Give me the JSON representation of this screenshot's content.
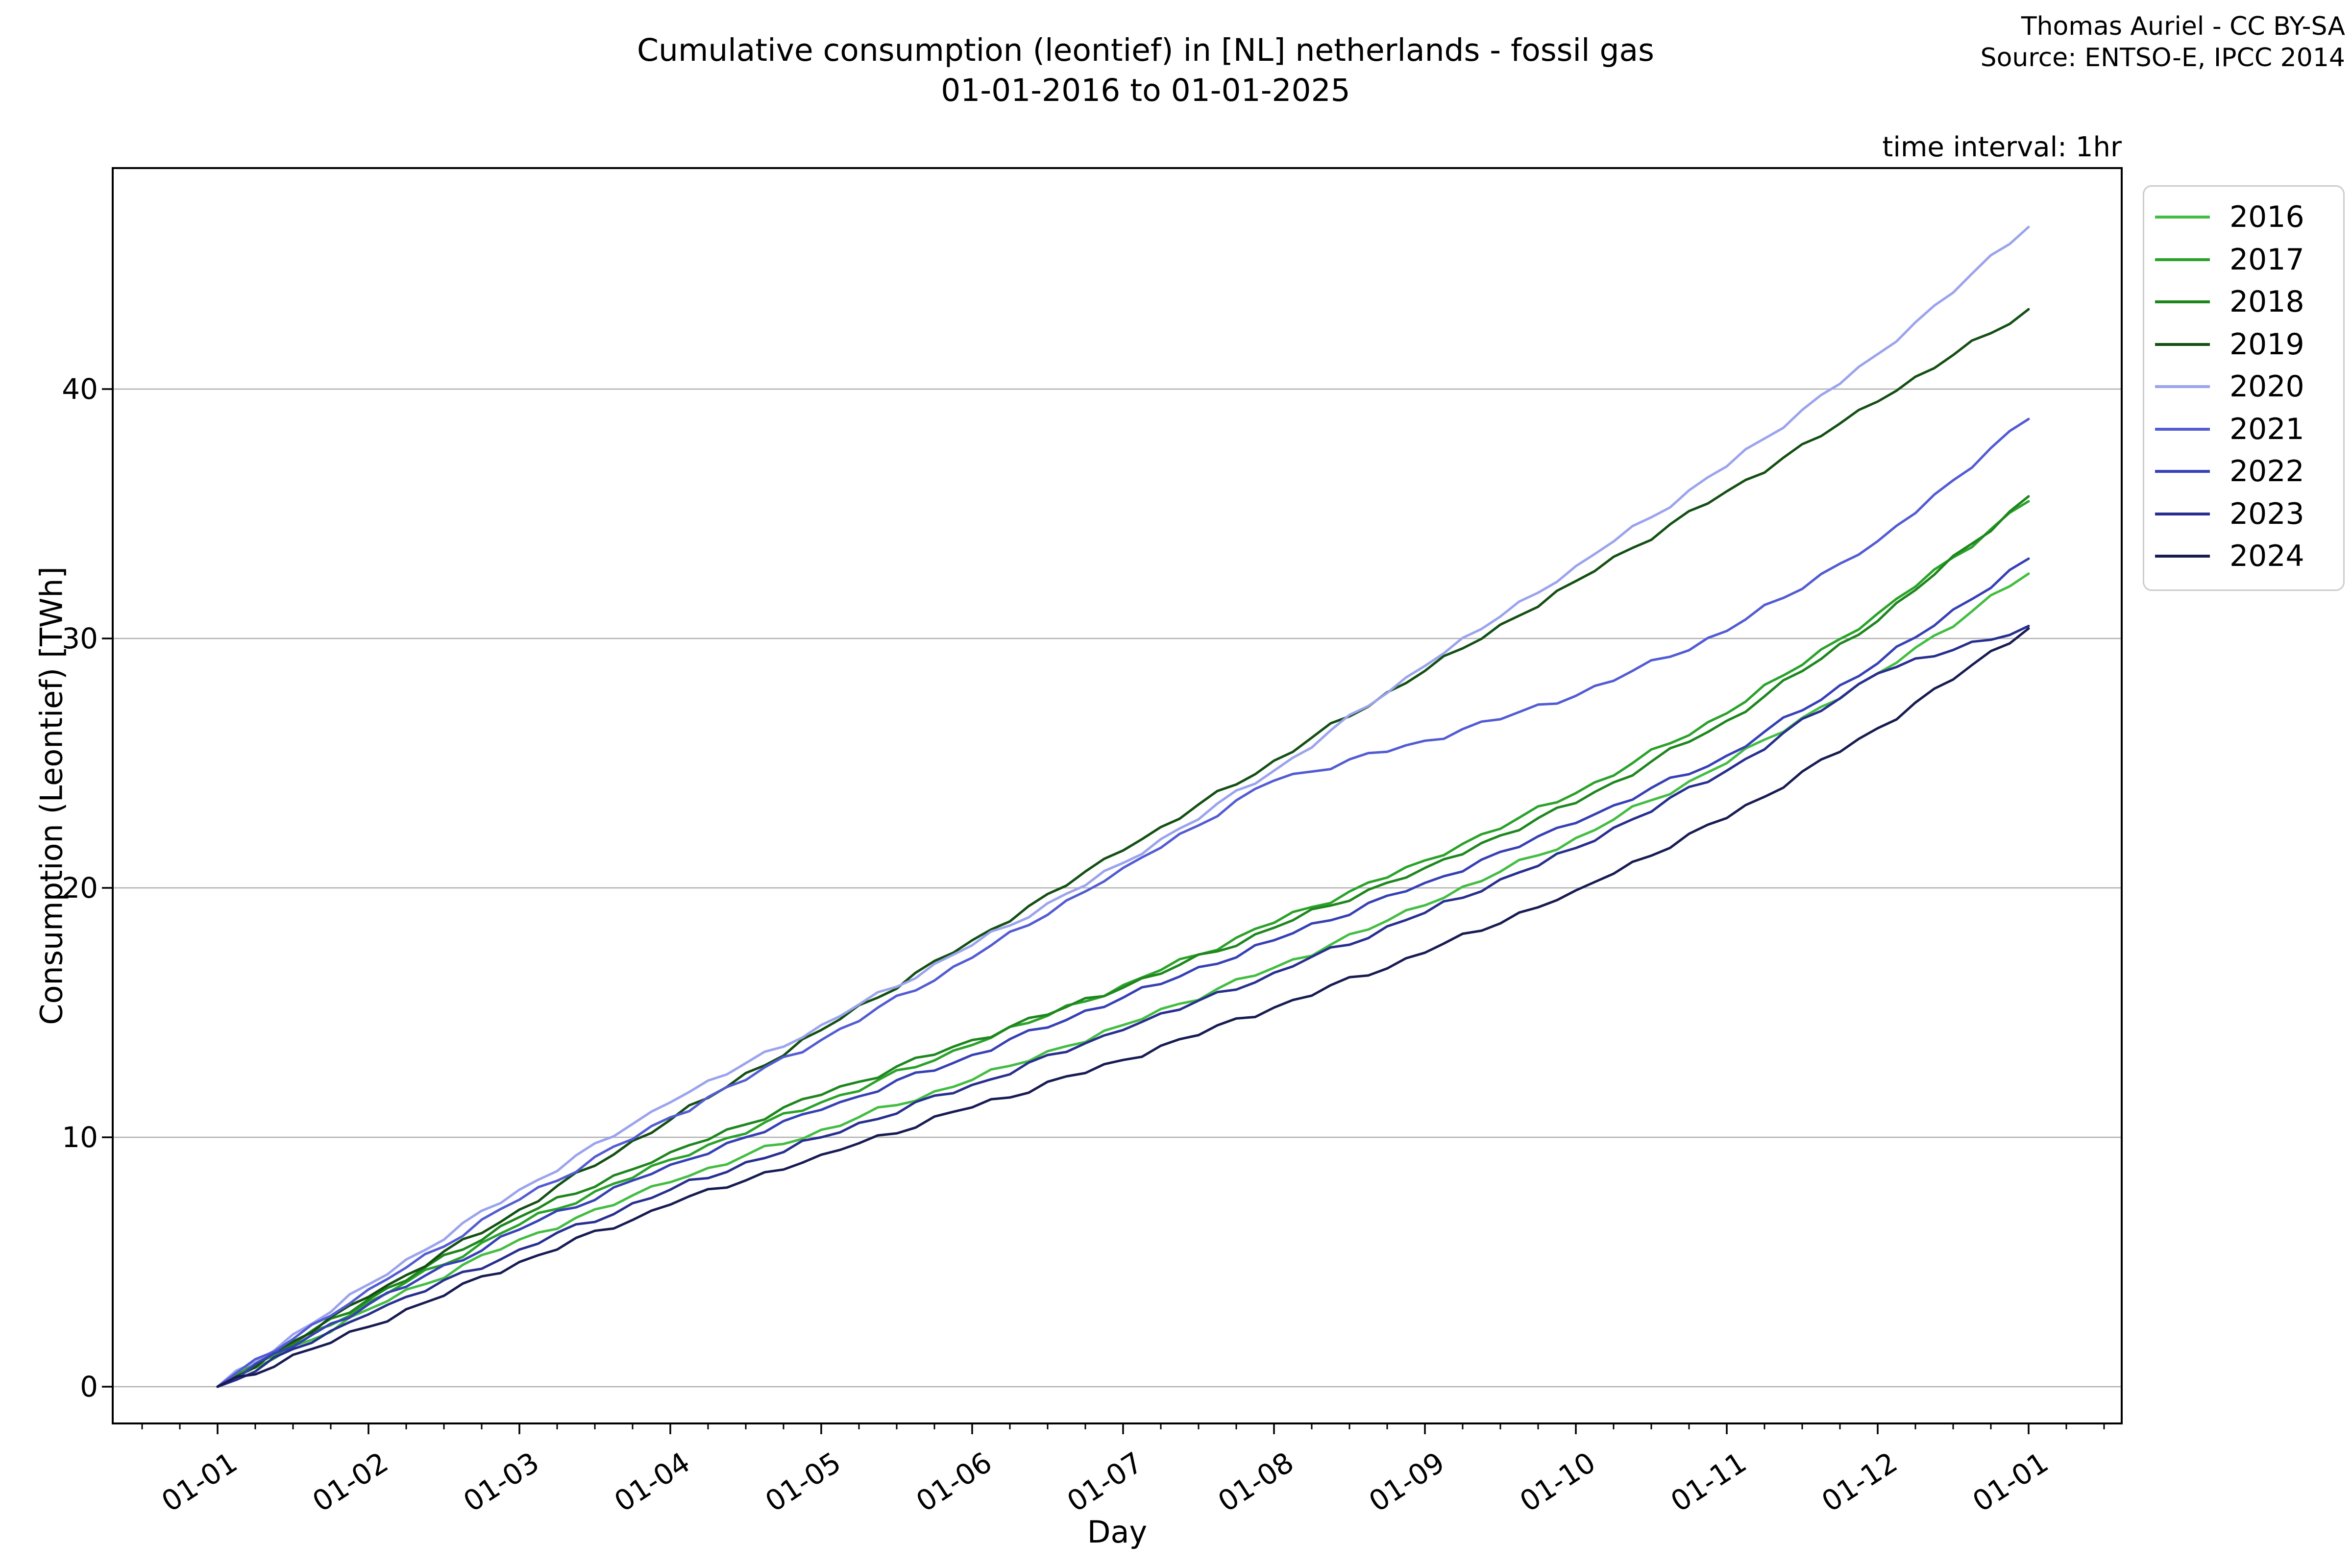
{
  "title": {
    "line1": "Cumulative consumption (leontief) in [NL] netherlands - fossil gas",
    "line2": "01-01-2016 to 01-01-2025"
  },
  "attribution": {
    "line1": "Thomas Auriel - CC BY-SA",
    "line2": "Source: ENTSO-E, IPCC 2014"
  },
  "annotations": {
    "time_interval": "time interval: 1hr"
  },
  "chart_data": {
    "type": "line",
    "title": "Cumulative consumption (leontief) in [NL] netherlands - fossil gas 01-01-2016 to 01-01-2025",
    "xlabel": "Day",
    "ylabel": "Consumption (Leontief) [TWh]",
    "x_tick_labels": [
      "01-01",
      "01-02",
      "01-03",
      "01-04",
      "01-05",
      "01-06",
      "01-07",
      "01-08",
      "01-09",
      "01-10",
      "01-11",
      "01-12",
      "01-01"
    ],
    "y_ticks": [
      0,
      10,
      20,
      30,
      40
    ],
    "ylim": [
      -1.5,
      48.9
    ],
    "grid": "horizontal",
    "grid_color": "#b0b0b0",
    "legend_position": "outside upper right",
    "x_months": [
      0,
      1,
      2,
      3,
      4,
      5,
      6,
      7,
      8,
      9,
      10,
      11,
      12
    ],
    "series": [
      {
        "name": "2016",
        "color": "#42bd42",
        "values": [
          0,
          3.1,
          5.9,
          8.2,
          10.3,
          12.3,
          14.5,
          16.8,
          19.3,
          22.0,
          25.0,
          28.6,
          32.6
        ]
      },
      {
        "name": "2017",
        "color": "#2aa22a",
        "values": [
          0,
          3.4,
          6.5,
          9.1,
          11.4,
          13.7,
          16.1,
          18.6,
          21.1,
          23.8,
          27.0,
          31.0,
          35.5
        ]
      },
      {
        "name": "2018",
        "color": "#1d861d",
        "values": [
          0,
          3.5,
          6.8,
          9.4,
          11.7,
          13.9,
          16.0,
          18.4,
          20.8,
          23.4,
          26.7,
          30.7,
          35.7
        ]
      },
      {
        "name": "2019",
        "color": "#134f13",
        "values": [
          0,
          3.6,
          7.1,
          10.7,
          14.3,
          17.9,
          21.5,
          25.1,
          28.7,
          32.3,
          35.9,
          39.5,
          43.2
        ]
      },
      {
        "name": "2020",
        "color": "#9aa3ed",
        "values": [
          0,
          4.1,
          7.9,
          11.4,
          14.5,
          17.7,
          21.0,
          24.7,
          28.9,
          32.9,
          36.9,
          41.4,
          46.5
        ]
      },
      {
        "name": "2021",
        "color": "#525bd3",
        "values": [
          0,
          3.9,
          7.5,
          10.8,
          13.9,
          17.2,
          20.8,
          24.3,
          25.9,
          27.7,
          30.3,
          33.9,
          38.8
        ]
      },
      {
        "name": "2022",
        "color": "#3640b5",
        "values": [
          0,
          3.3,
          6.3,
          8.9,
          11.1,
          13.3,
          15.6,
          17.9,
          20.2,
          22.6,
          25.3,
          29.0,
          33.2
        ]
      },
      {
        "name": "2023",
        "color": "#272e8f",
        "values": [
          0,
          2.9,
          5.5,
          7.9,
          10.0,
          12.1,
          14.3,
          16.6,
          19.0,
          21.6,
          24.7,
          28.6,
          30.5
        ]
      },
      {
        "name": "2024",
        "color": "#171b52",
        "values": [
          0,
          2.4,
          5.0,
          7.3,
          9.3,
          11.2,
          13.1,
          15.2,
          17.4,
          19.9,
          22.8,
          26.4,
          30.4
        ]
      }
    ]
  }
}
